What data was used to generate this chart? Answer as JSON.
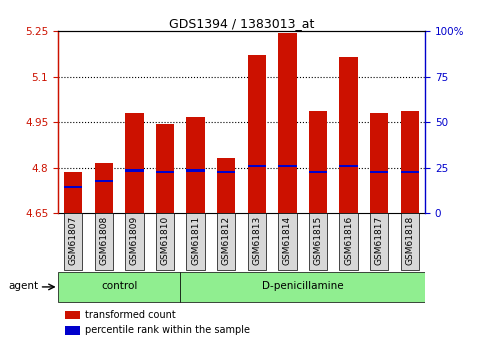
{
  "title": "GDS1394 / 1383013_at",
  "samples": [
    "GSM61807",
    "GSM61808",
    "GSM61809",
    "GSM61810",
    "GSM61811",
    "GSM61812",
    "GSM61813",
    "GSM61814",
    "GSM61815",
    "GSM61816",
    "GSM61817",
    "GSM61818"
  ],
  "transformed_count": [
    4.785,
    4.815,
    4.98,
    4.945,
    4.965,
    4.83,
    5.17,
    5.245,
    4.985,
    5.165,
    4.98,
    4.985
  ],
  "percentile_rank": [
    4.735,
    4.755,
    4.79,
    4.785,
    4.79,
    4.785,
    4.805,
    4.805,
    4.785,
    4.805,
    4.785,
    4.785
  ],
  "ymin": 4.65,
  "ymax": 5.25,
  "yticks": [
    4.65,
    4.8,
    4.95,
    5.1,
    5.25
  ],
  "ytick_labels": [
    "4.65",
    "4.8",
    "4.95",
    "5.1",
    "5.25"
  ],
  "y2tick_labels": [
    "0",
    "25",
    "50",
    "75",
    "100%"
  ],
  "bar_color": "#cc1100",
  "marker_color": "#0000cc",
  "bg_color": "#ffffff",
  "grid_color": "#000000",
  "control_label": "control",
  "treatment_label": "D-penicillamine",
  "agent_label": "agent",
  "legend_tc": "transformed count",
  "legend_pr": "percentile rank within the sample",
  "n_control": 4,
  "bar_width": 0.6,
  "gray_box": "#d8d8d8",
  "green_box": "#90ee90"
}
